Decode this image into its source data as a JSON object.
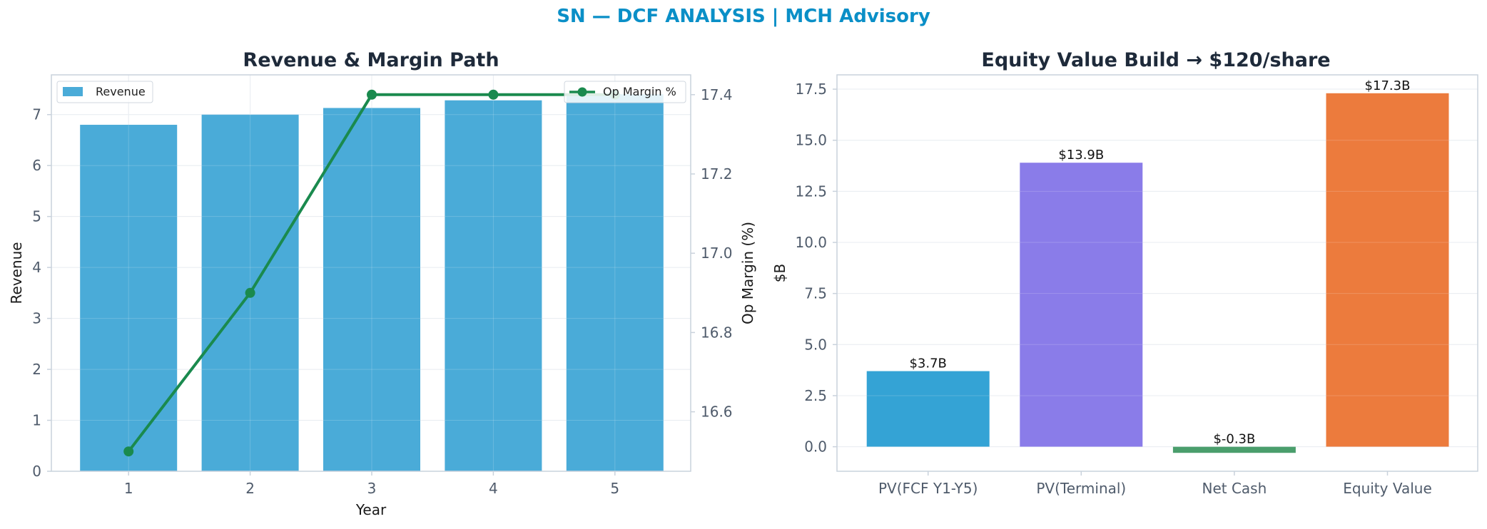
{
  "suptitle": "SN — DCF ANALYSIS | MCH Advisory",
  "colors": {
    "title": "#0a8fc7",
    "revenue_bar": "#4aabd8",
    "margin_line": "#1a8a4e",
    "pv_fcf": "#34a3d5",
    "pv_terminal": "#8a7ce9",
    "net_cash": "#4a9e6c",
    "equity_value": "#ec7b3d"
  },
  "chart_data": [
    {
      "type": "bar+line",
      "title": "Revenue & Margin Path",
      "xlabel": "Year",
      "ylabel": "Revenue",
      "y2label": "Op Margin (%)",
      "categories": [
        "1",
        "2",
        "3",
        "4",
        "5"
      ],
      "series": [
        {
          "name": "Revenue",
          "type": "bar",
          "axis": "left",
          "values": [
            6.8,
            7.0,
            7.13,
            7.28,
            7.4
          ]
        },
        {
          "name": "Op Margin %",
          "type": "line",
          "axis": "right",
          "values": [
            16.5,
            16.9,
            17.4,
            17.4,
            17.4
          ]
        }
      ],
      "ylim": [
        0,
        7.78
      ],
      "y2lim": [
        16.45,
        17.45
      ],
      "yticks": [
        "0",
        "1",
        "2",
        "3",
        "4",
        "5",
        "6",
        "7"
      ],
      "y2ticks": [
        "16.6",
        "16.8",
        "17.0",
        "17.2",
        "17.4"
      ],
      "legend": [
        "upper-left",
        "upper-right"
      ],
      "grid": true
    },
    {
      "type": "bar",
      "title": "Equity Value Build → $120/share",
      "xlabel": "",
      "ylabel": "$B",
      "categories": [
        "PV(FCF Y1-Y5)",
        "PV(Terminal)",
        "Net Cash",
        "Equity Value"
      ],
      "values": [
        3.7,
        13.9,
        -0.3,
        17.3
      ],
      "data_labels": [
        "$3.7B",
        "$13.9B",
        "$-0.3B",
        "$17.3B"
      ],
      "ylim": [
        -1.2,
        18.2
      ],
      "yticks": [
        "0.0",
        "2.5",
        "5.0",
        "7.5",
        "10.0",
        "12.5",
        "15.0",
        "17.5"
      ],
      "grid": true
    }
  ]
}
